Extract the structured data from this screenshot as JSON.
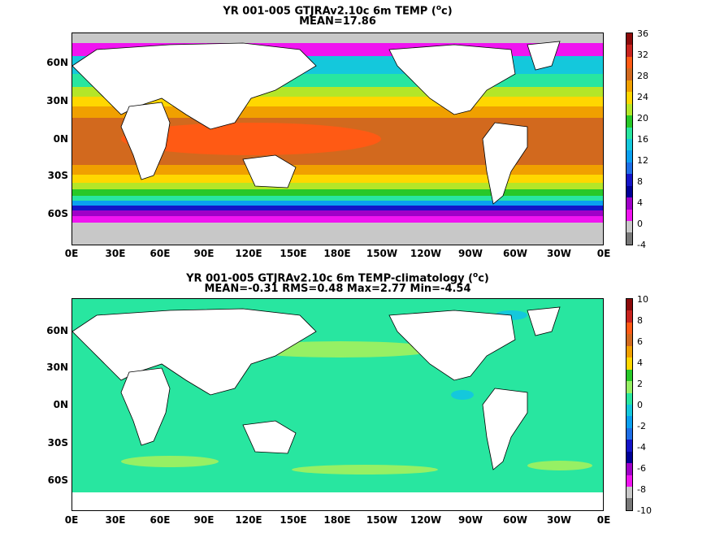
{
  "panels": [
    {
      "title_line1": "YR 001-005 GTJRAv2.10c 6m TEMP (",
      "title_unit_sup": "o",
      "title_unit_rest": "c)",
      "title_line2": "MEAN=17.86",
      "colorbar": {
        "ticks": [
          "36",
          "32",
          "28",
          "24",
          "20",
          "16",
          "12",
          "8",
          "4",
          "0",
          "-4"
        ],
        "colors": [
          "#8c0a0a",
          "#c8231e",
          "#ff5a14",
          "#d2691e",
          "#f0a000",
          "#ffd700",
          "#b4e628",
          "#28c828",
          "#28e6a0",
          "#14c8dc",
          "#0aa0f0",
          "#1e6ee6",
          "#1414c8",
          "#000096",
          "#a000c8",
          "#f014f0",
          "#c8c8c8",
          "#787878"
        ]
      }
    },
    {
      "title_line1": "YR 001-005 GTJRAv2.10c 6m TEMP-climatology (",
      "title_unit_sup": "o",
      "title_unit_rest": "c)",
      "title_line2": "MEAN=-0.31   RMS=0.48   Max=2.77   Min=-4.54",
      "colorbar": {
        "ticks": [
          "10",
          "8",
          "6",
          "4",
          "2",
          "0",
          "-2",
          "-4",
          "-6",
          "-8",
          "-10"
        ],
        "colors": [
          "#8c0a0a",
          "#c8231e",
          "#ff5a14",
          "#d2691e",
          "#f0a000",
          "#ffd700",
          "#28c828",
          "#96f064",
          "#28e6a0",
          "#14c8dc",
          "#0aa0f0",
          "#1e6ee6",
          "#1414c8",
          "#000096",
          "#a000c8",
          "#f014f0",
          "#c8c8c8",
          "#787878"
        ]
      }
    }
  ],
  "lat_labels": [
    "60N",
    "30N",
    "0N",
    "30S",
    "60S"
  ],
  "lon_labels": [
    "0E",
    "30E",
    "60E",
    "90E",
    "120E",
    "150E",
    "180E",
    "150W",
    "120W",
    "90W",
    "60W",
    "30W",
    "0E"
  ],
  "land_color": "#ffffff",
  "missing_color": "#c8c8c8"
}
